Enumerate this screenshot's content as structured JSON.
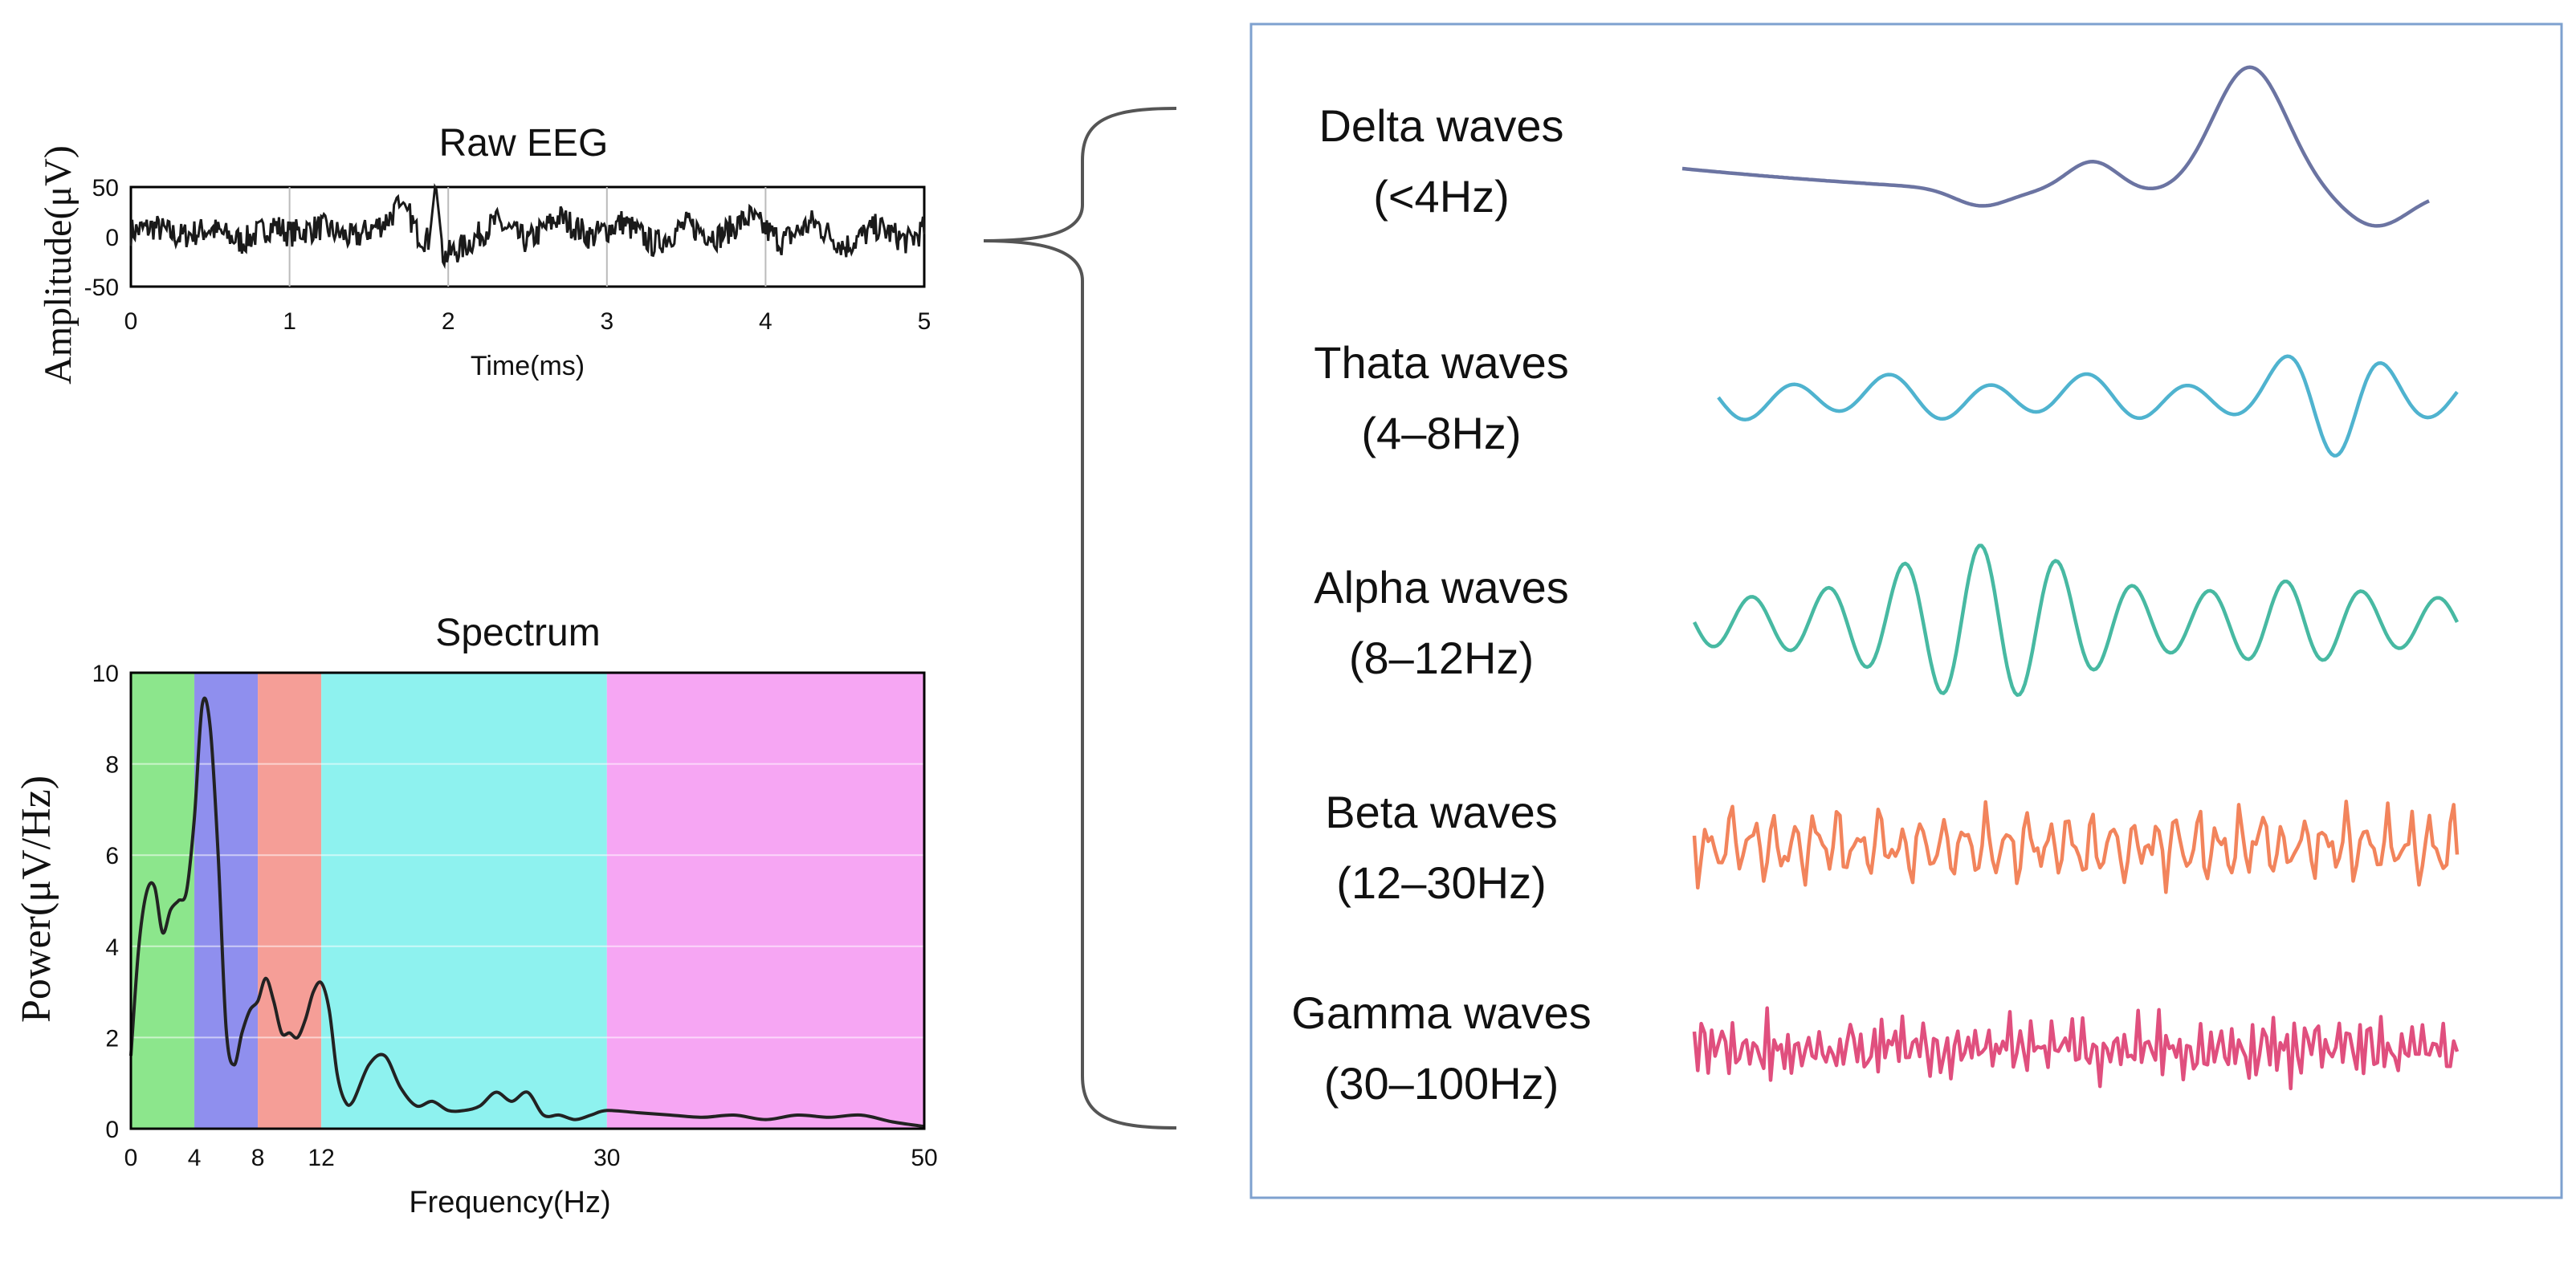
{
  "raw_eeg": {
    "chart_data": {
      "type": "line",
      "title": "Raw EEG",
      "xlabel": "Time(ms)",
      "ylabel": "Amplitude(μV)",
      "xlim": [
        0,
        5
      ],
      "ylim": [
        -50,
        50
      ],
      "x_ticks": [
        "0",
        "1",
        "2",
        "3",
        "4",
        "5"
      ],
      "y_ticks": [
        "50",
        "0",
        "-50"
      ],
      "grid": true,
      "series": [
        {
          "color": "#1a1a1a",
          "description_points": [
            [
              0.0,
              5
            ],
            [
              0.15,
              10
            ],
            [
              0.3,
              0
            ],
            [
              0.5,
              8
            ],
            [
              0.7,
              -5
            ],
            [
              0.9,
              12
            ],
            [
              1.0,
              3
            ],
            [
              1.2,
              10
            ],
            [
              1.4,
              -2
            ],
            [
              1.6,
              15
            ],
            [
              1.72,
              35
            ],
            [
              1.8,
              5
            ],
            [
              1.88,
              -5
            ],
            [
              1.92,
              55
            ],
            [
              1.97,
              -20
            ],
            [
              2.1,
              -10
            ],
            [
              2.3,
              15
            ],
            [
              2.5,
              -5
            ],
            [
              2.7,
              20
            ],
            [
              2.9,
              0
            ],
            [
              3.1,
              15
            ],
            [
              3.3,
              -8
            ],
            [
              3.5,
              12
            ],
            [
              3.7,
              0
            ],
            [
              3.9,
              20
            ],
            [
              4.1,
              -5
            ],
            [
              4.3,
              15
            ],
            [
              4.5,
              -10
            ],
            [
              4.7,
              10
            ],
            [
              4.9,
              -5
            ],
            [
              5.0,
              8
            ]
          ]
        }
      ]
    }
  },
  "spectrum": {
    "chart_data": {
      "type": "area",
      "title": "Spectrum",
      "xlabel": "Frequency(Hz)",
      "ylabel": "Power(μV/Hz)",
      "xlim": [
        0,
        50
      ],
      "ylim": [
        0,
        10
      ],
      "x_ticks": [
        0,
        4,
        8,
        12,
        30,
        50
      ],
      "y_ticks": [
        0,
        2,
        4,
        6,
        8,
        10
      ],
      "grid": true,
      "bands": [
        {
          "from": 0,
          "to": 4,
          "color": "#8ce68c"
        },
        {
          "from": 4,
          "to": 8,
          "color": "#8f8fee"
        },
        {
          "from": 8,
          "to": 12,
          "color": "#f59e97"
        },
        {
          "from": 12,
          "to": 30,
          "color": "#8ef2ef"
        },
        {
          "from": 30,
          "to": 50,
          "color": "#f6a6f3"
        }
      ],
      "series": [
        {
          "color": "#222222",
          "x": [
            0,
            0.5,
            1,
            1.5,
            2,
            2.5,
            3,
            3.5,
            4,
            4.5,
            5,
            5.5,
            6,
            6.5,
            7,
            7.5,
            8,
            8.5,
            9,
            9.5,
            10,
            10.5,
            11,
            11.5,
            12,
            12.5,
            13,
            13.5,
            14,
            15,
            16,
            17,
            18,
            19,
            20,
            21,
            22,
            23,
            24,
            25,
            26,
            27,
            28,
            29,
            30,
            32,
            34,
            36,
            38,
            40,
            42,
            44,
            46,
            48,
            50
          ],
          "values": [
            1.6,
            4.0,
            5.2,
            5.3,
            4.3,
            4.8,
            5.0,
            5.2,
            6.8,
            9.3,
            8.8,
            6.0,
            2.2,
            1.4,
            2.1,
            2.6,
            2.8,
            3.3,
            2.8,
            2.1,
            2.1,
            2.0,
            2.4,
            3.0,
            3.2,
            2.6,
            1.2,
            0.6,
            0.6,
            1.4,
            1.6,
            0.9,
            0.5,
            0.6,
            0.4,
            0.4,
            0.5,
            0.8,
            0.6,
            0.8,
            0.3,
            0.3,
            0.2,
            0.3,
            0.4,
            0.35,
            0.3,
            0.25,
            0.3,
            0.2,
            0.3,
            0.25,
            0.3,
            0.15,
            0.05
          ]
        }
      ]
    }
  },
  "waves": [
    {
      "name": "Delta waves",
      "range": "(<4Hz)",
      "color": "#6b74a2",
      "kind": "delta"
    },
    {
      "name": "Thata waves",
      "range": "(4–8Hz)",
      "color": "#4fb3cf",
      "kind": "theta"
    },
    {
      "name": "Alpha waves",
      "range": "(8–12Hz)",
      "color": "#47b9a2",
      "kind": "alpha"
    },
    {
      "name": "Beta waves",
      "range": "(12–30Hz)",
      "color": "#f2845c",
      "kind": "beta"
    },
    {
      "name": "Gamma waves",
      "range": "(30–100Hz)",
      "color": "#e04f7e",
      "kind": "gamma"
    }
  ],
  "colors": {
    "panel_border": "#7ea1cf",
    "brace": "#555555",
    "grid": "#bbbbbb"
  }
}
